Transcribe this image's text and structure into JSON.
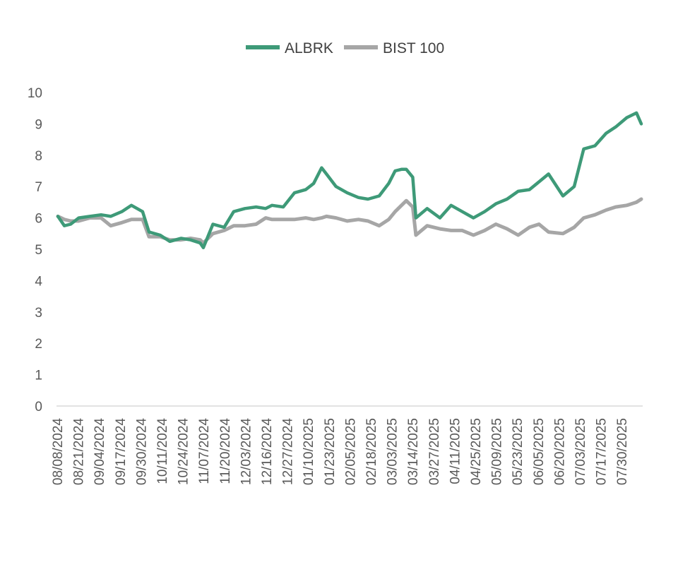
{
  "chart_data": {
    "type": "line",
    "title": "",
    "xlabel": "",
    "ylabel": "",
    "ylim": [
      0,
      10
    ],
    "yticks": [
      0,
      1,
      2,
      3,
      4,
      5,
      6,
      7,
      8,
      9,
      10
    ],
    "grid": false,
    "legend": "top-center",
    "xticks": [
      "08/08/2024",
      "08/21/2024",
      "09/04/2024",
      "09/17/2024",
      "09/30/2024",
      "10/11/2024",
      "10/24/2024",
      "11/07/2024",
      "11/20/2024",
      "12/03/2024",
      "12/16/2024",
      "12/27/2024",
      "01/10/2025",
      "01/23/2025",
      "02/05/2025",
      "02/18/2025",
      "03/03/2025",
      "03/14/2025",
      "03/27/2025",
      "04/11/2025",
      "04/25/2025",
      "05/09/2025",
      "05/23/2025",
      "06/05/2025",
      "06/20/2025",
      "07/03/2025",
      "07/17/2025",
      "07/30/2025"
    ],
    "series": [
      {
        "name": "ALBRK",
        "color": "#3E9A78",
        "x": [
          "08/08/2024",
          "08/12/2024",
          "08/16/2024",
          "08/21/2024",
          "08/28/2024",
          "09/04/2024",
          "09/10/2024",
          "09/17/2024",
          "09/23/2024",
          "09/30/2024",
          "10/04/2024",
          "10/11/2024",
          "10/17/2024",
          "10/24/2024",
          "10/30/2024",
          "11/05/2024",
          "11/07/2024",
          "11/13/2024",
          "11/20/2024",
          "11/26/2024",
          "12/03/2024",
          "12/10/2024",
          "12/16/2024",
          "12/20/2024",
          "12/27/2024",
          "01/03/2025",
          "01/10/2025",
          "01/15/2025",
          "01/20/2025",
          "01/23/2025",
          "01/29/2025",
          "02/05/2025",
          "02/12/2025",
          "02/18/2025",
          "02/25/2025",
          "03/03/2025",
          "03/07/2025",
          "03/11/2025",
          "03/14/2025",
          "03/18/2025",
          "03/20/2025",
          "03/27/2025",
          "04/04/2025",
          "04/11/2025",
          "04/18/2025",
          "04/25/2025",
          "05/02/2025",
          "05/09/2025",
          "05/16/2025",
          "05/23/2025",
          "05/30/2025",
          "06/05/2025",
          "06/11/2025",
          "06/20/2025",
          "06/27/2025",
          "07/03/2025",
          "07/10/2025",
          "07/17/2025",
          "07/23/2025",
          "07/30/2025",
          "08/05/2025",
          "08/08/2025"
        ],
        "values": [
          6.05,
          5.75,
          5.8,
          6.0,
          6.05,
          6.1,
          6.05,
          6.2,
          6.4,
          6.2,
          5.55,
          5.45,
          5.25,
          5.35,
          5.3,
          5.2,
          5.05,
          5.8,
          5.7,
          6.2,
          6.3,
          6.35,
          6.3,
          6.4,
          6.35,
          6.8,
          6.9,
          7.1,
          7.6,
          7.4,
          7.0,
          6.8,
          6.65,
          6.6,
          6.7,
          7.1,
          7.5,
          7.55,
          7.55,
          7.3,
          6.0,
          6.3,
          6.0,
          6.4,
          6.2,
          6.0,
          6.2,
          6.45,
          6.6,
          6.85,
          6.9,
          7.15,
          7.4,
          6.7,
          7.0,
          8.2,
          8.3,
          8.7,
          8.9,
          9.2,
          9.35,
          9.0
        ]
      },
      {
        "name": "BIST 100",
        "color": "#A6A6A6",
        "x": [
          "08/08/2024",
          "08/12/2024",
          "08/16/2024",
          "08/21/2024",
          "08/28/2024",
          "09/04/2024",
          "09/10/2024",
          "09/17/2024",
          "09/23/2024",
          "09/30/2024",
          "10/04/2024",
          "10/11/2024",
          "10/17/2024",
          "10/24/2024",
          "10/30/2024",
          "11/05/2024",
          "11/07/2024",
          "11/13/2024",
          "11/20/2024",
          "11/26/2024",
          "12/03/2024",
          "12/10/2024",
          "12/16/2024",
          "12/20/2024",
          "12/27/2024",
          "01/03/2025",
          "01/10/2025",
          "01/15/2025",
          "01/20/2025",
          "01/23/2025",
          "01/29/2025",
          "02/05/2025",
          "02/12/2025",
          "02/18/2025",
          "02/25/2025",
          "03/03/2025",
          "03/07/2025",
          "03/11/2025",
          "03/14/2025",
          "03/18/2025",
          "03/20/2025",
          "03/27/2025",
          "04/04/2025",
          "04/11/2025",
          "04/18/2025",
          "04/25/2025",
          "05/02/2025",
          "05/09/2025",
          "05/16/2025",
          "05/23/2025",
          "05/30/2025",
          "06/05/2025",
          "06/11/2025",
          "06/20/2025",
          "06/27/2025",
          "07/03/2025",
          "07/10/2025",
          "07/17/2025",
          "07/23/2025",
          "07/30/2025",
          "08/05/2025",
          "08/08/2025"
        ],
        "values": [
          6.05,
          5.95,
          5.9,
          5.9,
          6.0,
          6.0,
          5.75,
          5.85,
          5.95,
          5.95,
          5.4,
          5.4,
          5.3,
          5.3,
          5.35,
          5.3,
          5.2,
          5.5,
          5.6,
          5.75,
          5.75,
          5.8,
          6.0,
          5.95,
          5.95,
          5.95,
          6.0,
          5.95,
          6.0,
          6.05,
          6.0,
          5.9,
          5.95,
          5.9,
          5.75,
          5.95,
          6.2,
          6.4,
          6.55,
          6.35,
          5.45,
          5.75,
          5.65,
          5.6,
          5.6,
          5.45,
          5.6,
          5.8,
          5.65,
          5.45,
          5.7,
          5.8,
          5.55,
          5.5,
          5.7,
          6.0,
          6.1,
          6.25,
          6.35,
          6.4,
          6.5,
          6.6
        ]
      }
    ]
  }
}
